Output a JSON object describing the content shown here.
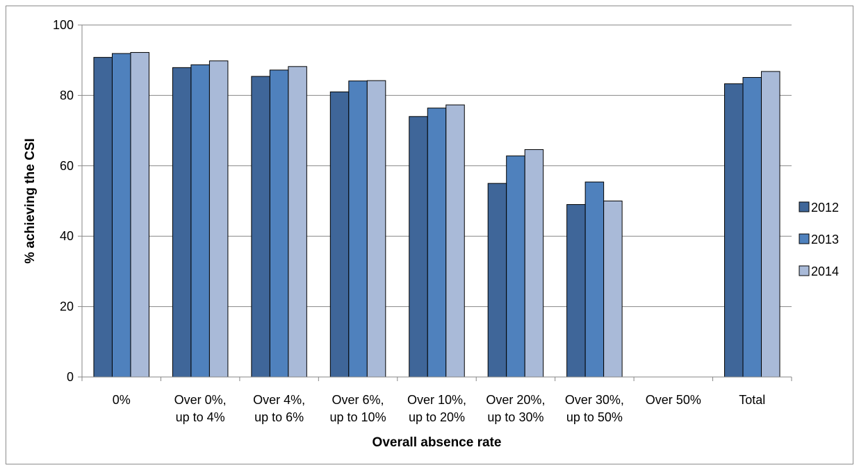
{
  "chart_data": {
    "type": "bar",
    "title": "",
    "xlabel": "Overall absence rate",
    "ylabel": "% achieving the CSI",
    "ylim": [
      0,
      100
    ],
    "yticks": [
      0,
      20,
      40,
      60,
      80,
      100
    ],
    "grid": true,
    "legend_position": "right",
    "categories": [
      [
        "0%"
      ],
      [
        "Over 0%,",
        "up to 4%"
      ],
      [
        "Over 4%,",
        "up to 6%"
      ],
      [
        "Over 6%,",
        "up to 10%"
      ],
      [
        "Over 10%,",
        "up to 20%"
      ],
      [
        "Over 20%,",
        "up to 30%"
      ],
      [
        "Over 30%,",
        "up to 50%"
      ],
      [
        "Over 50%"
      ],
      [
        "Total"
      ]
    ],
    "series": [
      {
        "name": "2012",
        "color": "#3f6699",
        "values": [
          90.8,
          87.9,
          85.4,
          81.0,
          74.0,
          55.0,
          49.0,
          null,
          83.3
        ]
      },
      {
        "name": "2013",
        "color": "#4f81bd",
        "values": [
          91.9,
          88.7,
          87.2,
          84.1,
          76.4,
          62.8,
          55.4,
          null,
          85.1
        ]
      },
      {
        "name": "2014",
        "color": "#a9bad8",
        "values": [
          92.2,
          89.8,
          88.2,
          84.2,
          77.3,
          64.6,
          50.0,
          null,
          86.8
        ]
      }
    ]
  }
}
